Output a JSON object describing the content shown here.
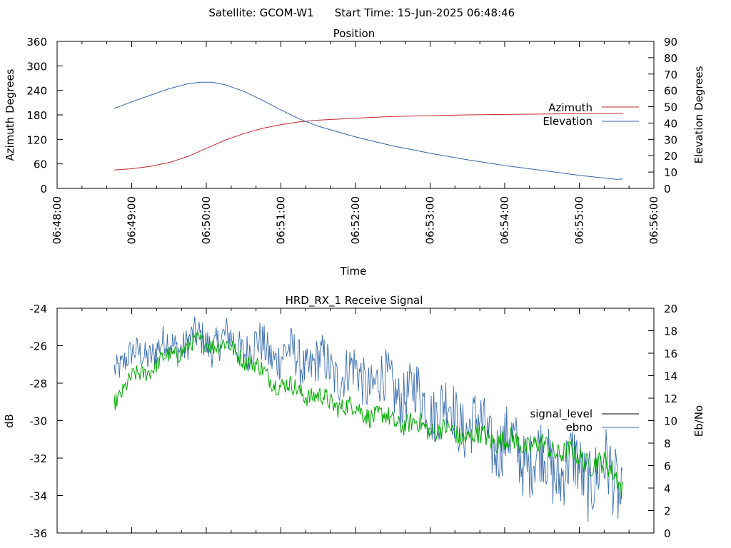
{
  "header": {
    "satellite_label": "Satellite: GCOM-W1",
    "start_time_label": "Start Time: 15-Jun-2025 06:48:46"
  },
  "colors": {
    "azimuth": "#c0282d",
    "elevation": "#3465a4",
    "signal_level": "#000000",
    "ebno": "#3b6eaf",
    "signal_green": "#00aa00",
    "axis": "#000000"
  },
  "chart_data": [
    {
      "type": "line",
      "title": "Position",
      "xlabel": "Time",
      "ylabel": "Azimuth Degrees",
      "y2label": "Elevation Degrees",
      "legend_placement": "right",
      "grid": false,
      "xlim": [
        "06:48:00",
        "06:56:00"
      ],
      "ylim": [
        0,
        360
      ],
      "y2lim": [
        0,
        90
      ],
      "xticks": [
        "06:48:00",
        "06:49:00",
        "06:50:00",
        "06:51:00",
        "06:52:00",
        "06:53:00",
        "06:54:00",
        "06:55:00",
        "06:56:00"
      ],
      "yticks": [
        0,
        60,
        120,
        180,
        240,
        300,
        360
      ],
      "y2ticks": [
        0,
        10,
        20,
        30,
        40,
        50,
        60,
        70,
        80,
        90
      ],
      "series": [
        {
          "name": "Azimuth",
          "axis": "y",
          "x": [
            "06:48:46",
            "06:49:00",
            "06:49:15",
            "06:49:30",
            "06:49:45",
            "06:50:00",
            "06:50:15",
            "06:50:30",
            "06:50:45",
            "06:51:00",
            "06:51:15",
            "06:51:30",
            "06:52:00",
            "06:52:30",
            "06:53:00",
            "06:53:30",
            "06:54:00",
            "06:54:30",
            "06:55:00",
            "06:55:35"
          ],
          "values": [
            45,
            48,
            54,
            63,
            78,
            98,
            118,
            134,
            147,
            156,
            163,
            167,
            172,
            176,
            178,
            180,
            181,
            182,
            183,
            184
          ]
        },
        {
          "name": "Elevation",
          "axis": "y2",
          "x": [
            "06:48:46",
            "06:49:00",
            "06:49:15",
            "06:49:30",
            "06:49:45",
            "06:49:55",
            "06:50:05",
            "06:50:15",
            "06:50:30",
            "06:50:45",
            "06:51:00",
            "06:51:15",
            "06:51:30",
            "06:52:00",
            "06:52:30",
            "06:53:00",
            "06:53:30",
            "06:54:00",
            "06:54:30",
            "06:55:00",
            "06:55:30",
            "06:55:35"
          ],
          "values": [
            49,
            53,
            57,
            61,
            64,
            65,
            65,
            63.5,
            59.5,
            54,
            48,
            42.5,
            38,
            31.5,
            26,
            21.5,
            17.5,
            14,
            11,
            8,
            5.5,
            5.8
          ]
        }
      ]
    },
    {
      "type": "line",
      "title": "HRD_RX_1 Receive Signal",
      "ylabel": "dB",
      "y2label": "Eb/No",
      "legend_placement": "right",
      "grid": false,
      "xlim": [
        "06:48:00",
        "06:56:00"
      ],
      "ylim": [
        -36,
        -24
      ],
      "y2lim": [
        0,
        20
      ],
      "yticks": [
        -36,
        -34,
        -32,
        -30,
        -28,
        -26,
        -24
      ],
      "y2ticks": [
        0,
        2,
        4,
        6,
        8,
        10,
        12,
        14,
        16,
        18,
        20
      ],
      "series": [
        {
          "name": "signal_level",
          "axis": "y",
          "x": [
            "06:48:46",
            "06:49:00",
            "06:49:15",
            "06:49:30",
            "06:49:45",
            "06:50:00",
            "06:50:15",
            "06:50:30",
            "06:50:45",
            "06:51:00",
            "06:51:15",
            "06:51:30",
            "06:51:45",
            "06:52:00",
            "06:52:15",
            "06:52:30",
            "06:52:45",
            "06:53:00",
            "06:53:15",
            "06:53:30",
            "06:53:45",
            "06:54:00",
            "06:54:15",
            "06:54:30",
            "06:54:45",
            "06:55:00",
            "06:55:15",
            "06:55:30",
            "06:55:35"
          ],
          "values": [
            -28.9,
            -27.8,
            -27.2,
            -26.6,
            -26.0,
            -25.8,
            -26.0,
            -26.6,
            -27.4,
            -28.1,
            -28.4,
            -28.8,
            -29.1,
            -29.4,
            -29.7,
            -30.0,
            -30.2,
            -30.4,
            -30.6,
            -30.8,
            -30.9,
            -31.1,
            -31.2,
            -31.4,
            -31.6,
            -32.0,
            -32.3,
            -32.8,
            -33.6
          ]
        },
        {
          "name": "ebno",
          "axis": "y2",
          "x": [
            "06:48:46",
            "06:49:00",
            "06:49:15",
            "06:49:30",
            "06:49:45",
            "06:50:00",
            "06:50:15",
            "06:50:30",
            "06:50:45",
            "06:51:00",
            "06:51:15",
            "06:51:30",
            "06:51:45",
            "06:52:00",
            "06:52:15",
            "06:52:30",
            "06:52:45",
            "06:53:00",
            "06:53:15",
            "06:53:30",
            "06:53:45",
            "06:54:00",
            "06:54:15",
            "06:54:30",
            "06:54:45",
            "06:55:00",
            "06:55:15",
            "06:55:30",
            "06:55:35"
          ],
          "values": [
            15.0,
            15.6,
            16.2,
            16.7,
            17.0,
            17.1,
            17.0,
            16.7,
            16.3,
            15.9,
            15.4,
            14.9,
            14.5,
            14.0,
            13.5,
            12.9,
            12.3,
            11.5,
            10.8,
            9.8,
            8.8,
            7.8,
            7.0,
            6.3,
            5.8,
            5.5,
            5.2,
            5.0,
            3.5
          ]
        }
      ]
    }
  ]
}
